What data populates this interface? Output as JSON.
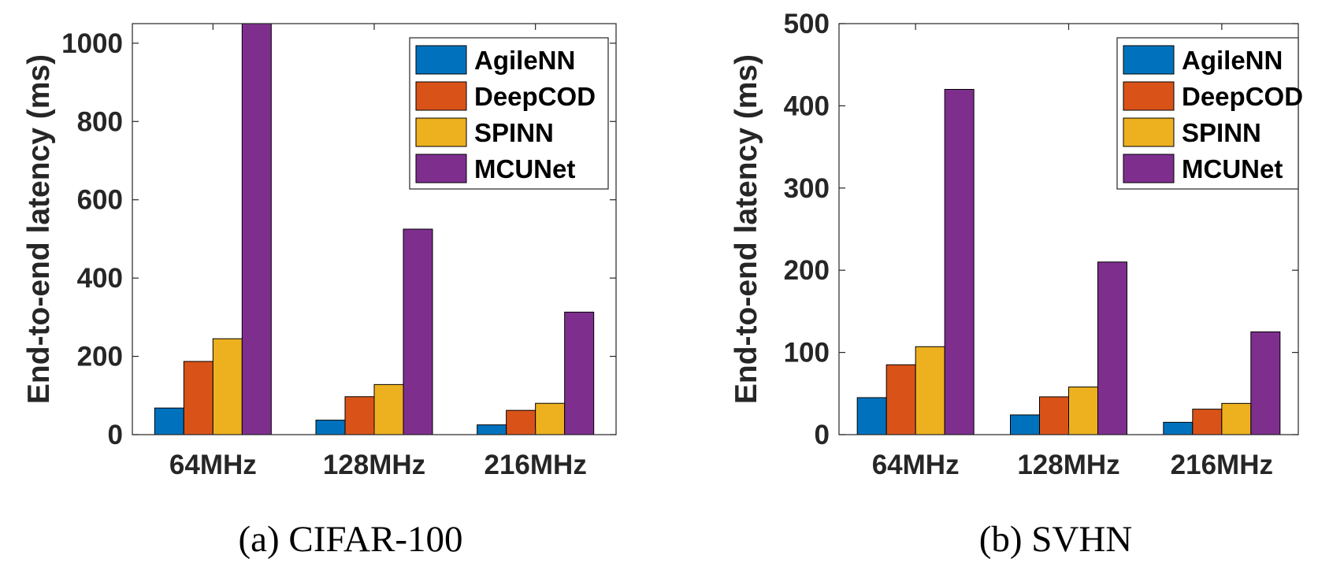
{
  "chart_data": [
    {
      "type": "bar",
      "caption": "(a) CIFAR-100",
      "title": "",
      "xlabel": "",
      "ylabel": "End-to-end latency (ms)",
      "ylim": [
        0,
        1050
      ],
      "yticks": [
        0,
        200,
        400,
        600,
        800,
        1000
      ],
      "categories": [
        "64MHz",
        "128MHz",
        "216MHz"
      ],
      "legend_position": "top-right",
      "series": [
        {
          "name": "AgileNN",
          "color": "#0072BD",
          "values": [
            68,
            37,
            25
          ]
        },
        {
          "name": "DeepCOD",
          "color": "#D95319",
          "values": [
            187,
            97,
            62
          ]
        },
        {
          "name": "SPINN",
          "color": "#EDB120",
          "values": [
            245,
            128,
            80
          ]
        },
        {
          "name": "MCUNet",
          "color": "#7E2F8E",
          "values": [
            1050,
            525,
            313
          ]
        }
      ]
    },
    {
      "type": "bar",
      "caption": "(b) SVHN",
      "title": "",
      "xlabel": "",
      "ylabel": "End-to-end latency (ms)",
      "ylim": [
        0,
        500
      ],
      "yticks": [
        0,
        100,
        200,
        300,
        400,
        500
      ],
      "categories": [
        "64MHz",
        "128MHz",
        "216MHz"
      ],
      "legend_position": "top-right",
      "series": [
        {
          "name": "AgileNN",
          "color": "#0072BD",
          "values": [
            45,
            24,
            15
          ]
        },
        {
          "name": "DeepCOD",
          "color": "#D95319",
          "values": [
            85,
            46,
            31
          ]
        },
        {
          "name": "SPINN",
          "color": "#EDB120",
          "values": [
            107,
            58,
            38
          ]
        },
        {
          "name": "MCUNet",
          "color": "#7E2F8E",
          "values": [
            420,
            210,
            125
          ]
        }
      ]
    }
  ]
}
